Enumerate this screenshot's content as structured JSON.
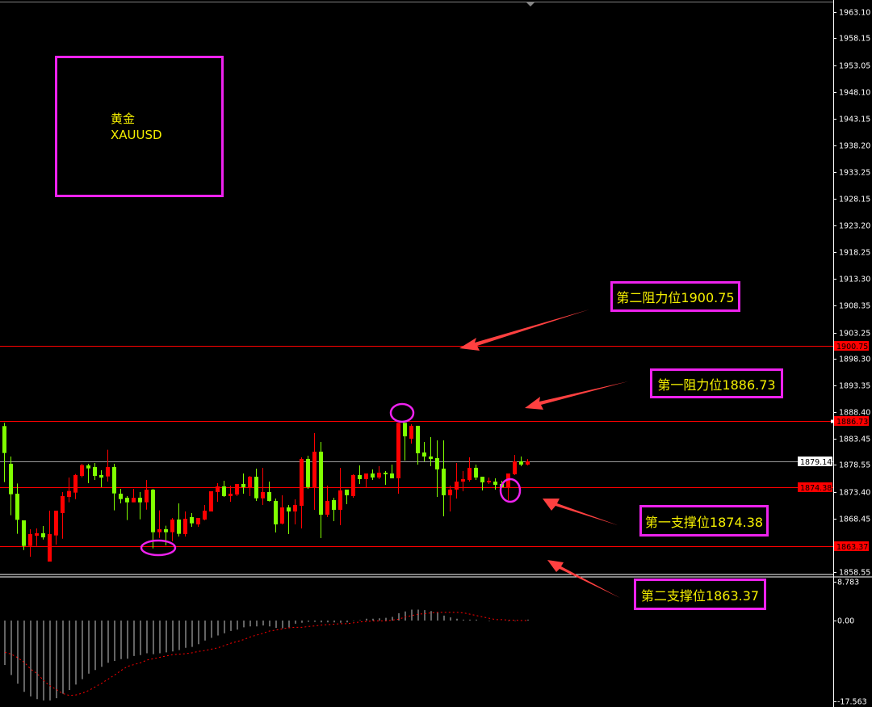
{
  "chart_data": {
    "type": "candlestick",
    "symbol_name": "黄金",
    "symbol": "XAUUSD",
    "colors": {
      "up": "#ff0000",
      "down": "#80ff00",
      "level_line": "#ff0000",
      "current_line": "#9a9a9a",
      "annotation": "#ee22ee",
      "annotation_text": "#f5f000",
      "arrow": "#ff4040",
      "macd_hist": "#c8c8c8",
      "macd_signal": "#ff0000"
    },
    "y_ticks": [
      1963.1,
      1958.15,
      1953.05,
      1948.1,
      1943.15,
      1938.2,
      1933.25,
      1928.15,
      1923.2,
      1918.25,
      1913.3,
      1908.35,
      1903.25,
      1898.3,
      1893.35,
      1888.4,
      1883.45,
      1878.55,
      1873.4,
      1868.45,
      1858.55
    ],
    "y_tick_labels": [
      "1963.10",
      "1958.15",
      "1953.05",
      "1948.10",
      "1943.15",
      "1938.20",
      "1933.25",
      "1928.15",
      "1923.20",
      "1918.25",
      "1913.30",
      "1908.35",
      "1903.25",
      "1898.30",
      "1893.35",
      "1888.40",
      "1883.45",
      "1878.55",
      "1873.40",
      "1868.45",
      "1858.55"
    ],
    "ylim": [
      1858.0,
      1965.5
    ],
    "current_price": {
      "value": 1879.14,
      "label": "1879.14"
    },
    "levels": [
      {
        "value": 1900.75,
        "label": "1900.75",
        "text": "第二阻力位1900.75"
      },
      {
        "value": 1886.73,
        "label": "1886.73",
        "text": "第一阻力位1886.73"
      },
      {
        "value": 1874.38,
        "label": "1874.38",
        "text": "第一支撑位1874.38"
      },
      {
        "value": 1863.37,
        "label": "1863.37",
        "text": "第二支撑位1863.37"
      }
    ],
    "ohlc": [
      [
        1885.79,
        1886.39,
        1875.33,
        1880.76
      ],
      [
        1878.75,
        1880.11,
        1869.15,
        1873.07
      ],
      [
        1873.17,
        1875.08,
        1865.68,
        1868.29
      ],
      [
        1868.19,
        1868.19,
        1862.66,
        1863.42
      ],
      [
        1863.42,
        1866.53,
        1861.4,
        1865.63
      ],
      [
        1865.33,
        1866.68,
        1863.42,
        1865.78
      ],
      [
        1865.78,
        1867.14,
        1864.62,
        1865.02
      ],
      [
        1860.5,
        1870.0,
        1860.5,
        1865.63
      ],
      [
        1865.38,
        1870.0,
        1863.67,
        1870.0
      ],
      [
        1869.55,
        1873.47,
        1864.77,
        1872.72
      ],
      [
        1872.57,
        1876.18,
        1871.56,
        1873.67
      ],
      [
        1873.37,
        1876.84,
        1872.16,
        1876.64
      ],
      [
        1876.49,
        1878.75,
        1876.23,
        1878.5
      ],
      [
        1878.45,
        1878.75,
        1875.13,
        1877.89
      ],
      [
        1878.15,
        1878.9,
        1875.73,
        1876.49
      ],
      [
        1876.64,
        1877.54,
        1874.37,
        1876.18
      ],
      [
        1876.39,
        1881.36,
        1875.43,
        1878.15
      ],
      [
        1878.15,
        1878.75,
        1870.05,
        1873.22
      ],
      [
        1873.17,
        1874.07,
        1871.36,
        1872.16
      ],
      [
        1872.41,
        1872.72,
        1868.24,
        1871.56
      ],
      [
        1871.56,
        1874.07,
        1871.56,
        1872.41
      ],
      [
        1872.41,
        1873.47,
        1868.39,
        1871.56
      ],
      [
        1871.56,
        1875.73,
        1870.2,
        1873.92
      ],
      [
        1873.92,
        1874.07,
        1862.96,
        1865.98
      ],
      [
        1865.98,
        1870.05,
        1864.92,
        1866.53
      ],
      [
        1866.53,
        1867.19,
        1863.52,
        1865.98
      ],
      [
        1865.98,
        1868.64,
        1864.27,
        1868.34
      ],
      [
        1868.34,
        1871.36,
        1865.18,
        1865.68
      ],
      [
        1865.63,
        1869.85,
        1865.18,
        1868.49
      ],
      [
        1868.8,
        1869.55,
        1866.98,
        1867.64
      ],
      [
        1867.44,
        1868.64,
        1866.98,
        1868.64
      ],
      [
        1868.34,
        1871.06,
        1868.19,
        1870.0
      ],
      [
        1869.85,
        1873.62,
        1869.85,
        1873.62
      ],
      [
        1873.47,
        1875.13,
        1871.66,
        1874.53
      ],
      [
        1874.53,
        1875.58,
        1872.57,
        1872.72
      ],
      [
        1872.72,
        1874.68,
        1871.66,
        1873.17
      ],
      [
        1873.02,
        1874.98,
        1872.72,
        1874.98
      ],
      [
        1874.98,
        1876.94,
        1873.17,
        1874.37
      ],
      [
        1874.32,
        1876.49,
        1872.72,
        1876.34
      ],
      [
        1876.34,
        1877.84,
        1871.81,
        1872.31
      ],
      [
        1872.31,
        1877.99,
        1871.06,
        1873.47
      ],
      [
        1873.47,
        1875.43,
        1871.71,
        1871.81
      ],
      [
        1871.81,
        1872.27,
        1865.93,
        1867.44
      ],
      [
        1867.59,
        1872.87,
        1867.44,
        1870.61
      ],
      [
        1870.61,
        1871.06,
        1865.63,
        1869.85
      ],
      [
        1869.85,
        1872.12,
        1867.44,
        1871.06
      ],
      [
        1870.91,
        1879.96,
        1866.69,
        1879.66
      ],
      [
        1879.66,
        1880.26,
        1874.08,
        1874.38
      ],
      [
        1874.38,
        1884.48,
        1870.16,
        1881.01
      ],
      [
        1881.01,
        1882.82,
        1864.88,
        1869.25
      ],
      [
        1869.25,
        1874.68,
        1868.8,
        1871.81
      ],
      [
        1871.97,
        1872.42,
        1868.04,
        1870.16
      ],
      [
        1870.16,
        1878.0,
        1867.29,
        1873.78
      ],
      [
        1873.93,
        1873.93,
        1871.21,
        1872.87
      ],
      [
        1872.72,
        1876.79,
        1872.42,
        1876.64
      ],
      [
        1876.64,
        1878.45,
        1874.98,
        1875.89
      ],
      [
        1875.89,
        1876.94,
        1874.38,
        1876.94
      ],
      [
        1876.94,
        1877.7,
        1875.74,
        1876.19
      ],
      [
        1876.19,
        1878.3,
        1875.89,
        1877.09
      ],
      [
        1877.09,
        1877.39,
        1874.83,
        1876.79
      ],
      [
        1876.94,
        1878.6,
        1876.04,
        1876.04
      ],
      [
        1876.04,
        1886.39,
        1873.17,
        1886.39
      ],
      [
        1886.39,
        1886.39,
        1879.36,
        1883.88
      ],
      [
        1883.43,
        1886.14,
        1882.52,
        1885.84
      ],
      [
        1885.84,
        1885.84,
        1878.6,
        1880.71
      ],
      [
        1880.86,
        1882.82,
        1879.2,
        1880.11
      ],
      [
        1880.11,
        1883.73,
        1878.3,
        1879.66
      ],
      [
        1879.81,
        1883.13,
        1872.57,
        1877.7
      ],
      [
        1877.85,
        1883.13,
        1868.95,
        1872.87
      ],
      [
        1872.87,
        1874.68,
        1869.85,
        1873.93
      ],
      [
        1873.93,
        1878.9,
        1872.27,
        1875.43
      ],
      [
        1875.43,
        1877.39,
        1873.62,
        1875.89
      ],
      [
        1875.74,
        1879.96,
        1875.43,
        1878.0
      ],
      [
        1878.0,
        1878.6,
        1875.74,
        1876.19
      ],
      [
        1876.34,
        1876.34,
        1873.78,
        1875.28
      ],
      [
        1875.28,
        1876.19,
        1874.98,
        1875.58
      ],
      [
        1875.43,
        1876.04,
        1873.93,
        1874.83
      ],
      [
        1874.98,
        1875.58,
        1874.23,
        1874.38
      ],
      [
        1874.38,
        1876.94,
        1871.97,
        1876.94
      ],
      [
        1876.79,
        1880.41,
        1876.64,
        1879.2
      ],
      [
        1879.2,
        1880.11,
        1878.3,
        1878.6
      ],
      [
        1878.6,
        1879.66,
        1878.45,
        1879.2
      ]
    ],
    "macd": {
      "y_tick_labels": [
        "8.783",
        "0.00",
        "-17.563"
      ],
      "y_ticks": [
        8.783,
        0,
        -17.563
      ],
      "histogram": [
        -9.8,
        -12.0,
        -13.9,
        -15.7,
        -16.7,
        -17.3,
        -17.6,
        -17.6,
        -17.1,
        -16.1,
        -15.3,
        -14.1,
        -12.9,
        -11.7,
        -10.9,
        -10.2,
        -9.3,
        -8.9,
        -8.5,
        -8.4,
        -7.8,
        -7.6,
        -7.2,
        -7.4,
        -7.2,
        -7.0,
        -6.8,
        -6.5,
        -6.0,
        -5.8,
        -5.2,
        -4.4,
        -3.8,
        -3.3,
        -2.8,
        -2.3,
        -2.0,
        -1.5,
        -1.3,
        -1.3,
        -1.1,
        -1.3,
        -1.6,
        -1.7,
        -1.5,
        -0.7,
        -0.5,
        -0.3,
        -0.3,
        -0.4,
        -0.4,
        -0.4,
        -0.5,
        -0.4,
        -0.1,
        0.1,
        0.4,
        0.4,
        0.5,
        0.6,
        0.8,
        1.6,
        2.0,
        2.4,
        2.4,
        2.3,
        2.1,
        1.8,
        1.1,
        0.7,
        0.4,
        0.2,
        0.2,
        0.2,
        0.0,
        -0.1,
        0.0,
        0.0,
        -0.1,
        -0.1,
        0.0,
        0.2
      ],
      "signal": [
        -7.0,
        -7.4,
        -8.2,
        -9.2,
        -10.7,
        -11.7,
        -13.2,
        -14.4,
        -15.2,
        -16.1,
        -16.5,
        -16.4,
        -16.0,
        -15.4,
        -14.6,
        -13.8,
        -12.9,
        -12.0,
        -11.0,
        -10.1,
        -9.7,
        -9.3,
        -8.7,
        -8.4,
        -8.1,
        -7.8,
        -7.5,
        -7.4,
        -7.3,
        -7.1,
        -6.8,
        -6.6,
        -6.3,
        -6.0,
        -5.5,
        -5.0,
        -4.6,
        -4.2,
        -3.6,
        -3.2,
        -2.8,
        -2.3,
        -2.1,
        -1.8,
        -1.6,
        -1.5,
        -1.5,
        -1.3,
        -1.2,
        -1.0,
        -0.9,
        -0.8,
        -0.7,
        -0.7,
        -0.5,
        -0.3,
        -0.2,
        -0.1,
        -0.1,
        -0.1,
        0.1,
        0.3,
        0.8,
        1.1,
        1.4,
        1.5,
        1.7,
        1.8,
        1.8,
        1.8,
        1.8,
        1.7,
        1.4,
        1.1,
        0.8,
        0.5,
        0.2,
        0.2,
        0.1,
        0.1,
        0.0,
        0.0
      ]
    }
  }
}
